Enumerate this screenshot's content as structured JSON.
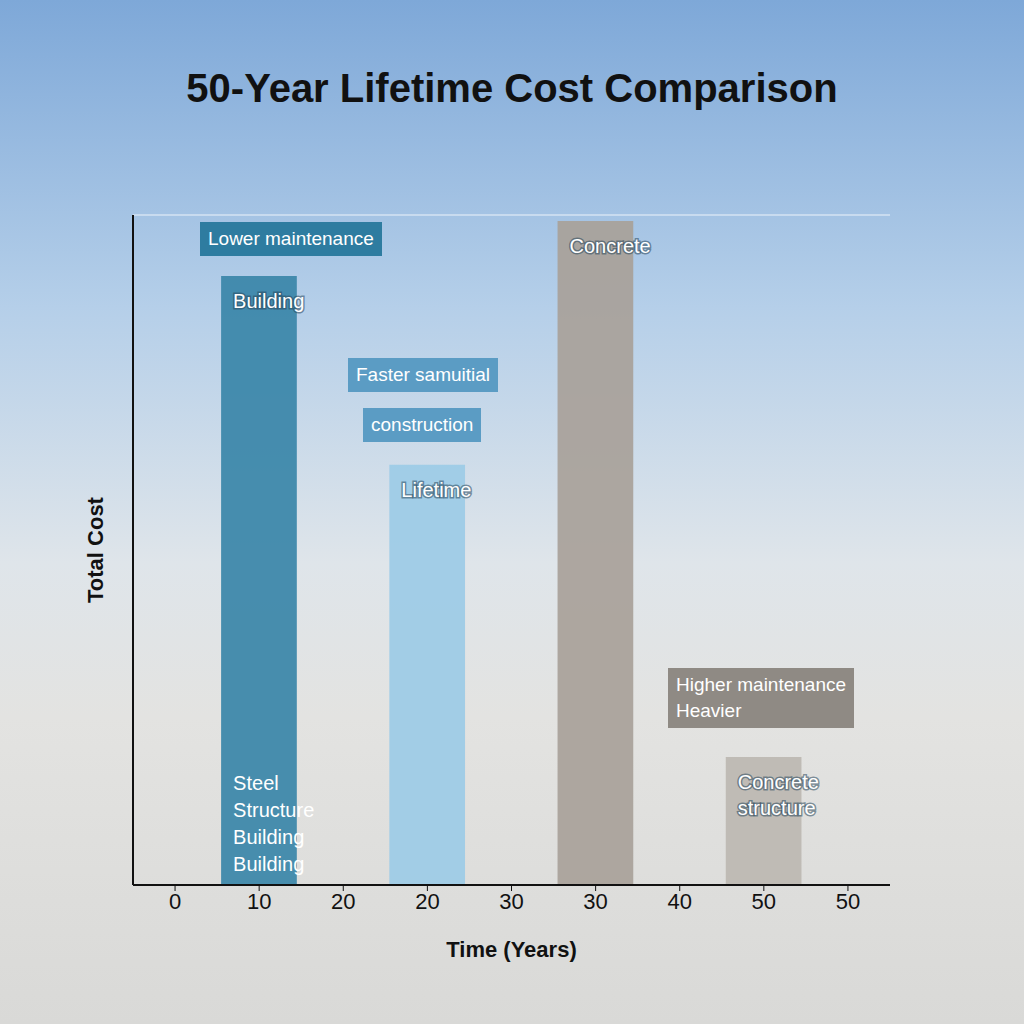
{
  "chart_data": {
    "type": "bar",
    "title": "50-Year Lifetime Cost Comparison",
    "x_label": "Time (Years)",
    "y_label": "Total Cost",
    "categories": [
      "0",
      "10",
      "20",
      "20",
      "30",
      "30",
      "40",
      "50",
      "50"
    ],
    "values": [
      null,
      10,
      null,
      6.9,
      null,
      10.9,
      null,
      2.1,
      null
    ],
    "colors": [
      null,
      "#3a86a8",
      null,
      "#9ccbe6",
      null,
      "#a8a199",
      null,
      "#bcb7b1",
      null
    ],
    "bar_labels": [
      null,
      "Building",
      null,
      "Lifetime",
      null,
      "Concrete",
      null,
      "Concrete structure",
      null
    ],
    "bar_bottom_labels": [
      null,
      "Steel Structure Building Building",
      null,
      null,
      null,
      null,
      null,
      null,
      null
    ],
    "annotations": [
      [
        "Lower maintenance"
      ],
      [
        "Faster samuitial"
      ],
      [
        "construction"
      ],
      [
        "Higher maintenance",
        "Heavier"
      ]
    ],
    "ylim": [
      0,
      11
    ],
    "yticks": [
      0,
      1,
      2,
      3,
      4,
      5,
      6,
      7,
      8,
      9,
      10,
      11
    ],
    "grid": true,
    "tick_labels": "x"
  }
}
